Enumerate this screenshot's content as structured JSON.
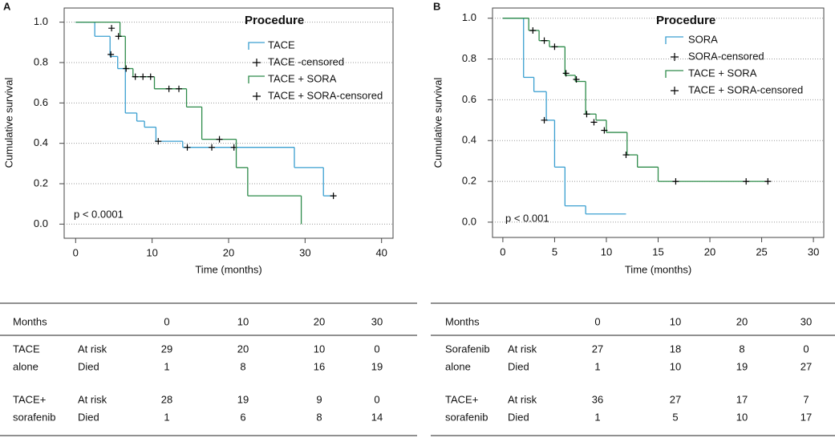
{
  "chart_data": [
    {
      "type": "step",
      "panel": "A",
      "legend_title": "Procedure",
      "annotation": "p < 0.0001",
      "xlabel": "Time (months)",
      "ylabel": "Cumulative survival",
      "xlim": [
        -1.5,
        41.5
      ],
      "xticks": [
        0,
        10,
        20,
        30,
        40
      ],
      "ylim": [
        -0.07,
        1.07
      ],
      "yticks": [
        {
          "value": 0,
          "label": "0.0"
        },
        0.2,
        0.4,
        0.6,
        0.8,
        {
          "value": 1,
          "label": "1.0"
        }
      ],
      "grid": true,
      "series": [
        {
          "name": "TACE",
          "color": "#3a9fd0",
          "style": "line",
          "x": [
            0,
            2.5,
            4.5,
            5.5,
            6.5,
            8,
            9,
            10.5,
            14,
            28.6,
            32.4,
            33.7
          ],
          "values": [
            1,
            0.93,
            0.83,
            0.77,
            0.55,
            0.51,
            0.48,
            0.41,
            0.38,
            0.28,
            0.14,
            0.14
          ]
        },
        {
          "name": "TACE -censored",
          "color": "#000000",
          "style": "marker",
          "x": [
            4.6,
            10.8,
            14.6,
            17.8,
            20.7,
            33.7
          ],
          "values": [
            0.84,
            0.41,
            0.38,
            0.38,
            0.38,
            0.14
          ]
        },
        {
          "name": "TACE + SORA",
          "color": "#2e8b4a",
          "style": "line",
          "x": [
            0,
            5.8,
            6.5,
            7.5,
            10.3,
            14.5,
            16.5,
            21,
            22.5,
            29.5
          ],
          "values": [
            1,
            0.93,
            0.77,
            0.73,
            0.67,
            0.58,
            0.42,
            0.28,
            0.14,
            0
          ]
        },
        {
          "name": "TACE + SORA-censored",
          "color": "#000000",
          "style": "marker",
          "x": [
            4.7,
            5.6,
            6.6,
            7.8,
            8.8,
            9.8,
            12.2,
            13.5,
            18.8
          ],
          "values": [
            0.97,
            0.93,
            0.77,
            0.73,
            0.73,
            0.73,
            0.67,
            0.67,
            0.42
          ]
        }
      ]
    },
    {
      "type": "step",
      "panel": "B",
      "legend_title": "Procedure",
      "annotation": "p < 0.001",
      "xlabel": "Time (months)",
      "ylabel": "Cumulative survival",
      "xlim": [
        -1,
        31
      ],
      "xticks": [
        0,
        5,
        10,
        15,
        20,
        25,
        30
      ],
      "ylim": [
        -0.075,
        1.05
      ],
      "yticks": [
        {
          "value": 0,
          "label": "0.0"
        },
        0.2,
        0.4,
        0.6,
        0.8,
        {
          "value": 1,
          "label": "1.0"
        }
      ],
      "grid": true,
      "series": [
        {
          "name": "SORA",
          "color": "#3a9fd0",
          "style": "line",
          "x": [
            0,
            2,
            3,
            4.2,
            5,
            6,
            8,
            11.9
          ],
          "values": [
            1,
            0.71,
            0.64,
            0.5,
            0.27,
            0.08,
            0.04,
            0.04
          ]
        },
        {
          "name": "SORA-censored",
          "color": "#000000",
          "style": "marker",
          "x": [
            4
          ],
          "values": [
            0.5
          ]
        },
        {
          "name": "TACE + SORA",
          "color": "#2e8b4a",
          "style": "line",
          "x": [
            0,
            2.5,
            3.5,
            4.5,
            6,
            7,
            8,
            9,
            10,
            12,
            13,
            15,
            25.6
          ],
          "values": [
            1,
            0.94,
            0.89,
            0.86,
            0.72,
            0.69,
            0.53,
            0.5,
            0.44,
            0.33,
            0.27,
            0.2,
            0.2
          ]
        },
        {
          "name": "TACE + SORA-censored",
          "color": "#000000",
          "style": "marker",
          "x": [
            2.9,
            4,
            5,
            6.1,
            7.1,
            8.1,
            8.8,
            9.8,
            11.9,
            16.7,
            23.5,
            25.6
          ],
          "values": [
            0.94,
            0.89,
            0.86,
            0.73,
            0.7,
            0.53,
            0.49,
            0.45,
            0.33,
            0.2,
            0.2,
            0.2
          ]
        }
      ]
    }
  ],
  "tables": [
    {
      "header": "Months",
      "months": [
        0,
        10,
        20,
        30
      ],
      "groups": [
        {
          "name": [
            "TACE",
            "alone"
          ],
          "rows": [
            {
              "label": "At risk",
              "values": [
                29,
                20,
                10,
                0
              ]
            },
            {
              "label": "Died",
              "values": [
                1,
                8,
                16,
                19
              ]
            }
          ]
        },
        {
          "name": [
            "TACE+",
            "sorafenib"
          ],
          "rows": [
            {
              "label": "At risk",
              "values": [
                28,
                19,
                9,
                0
              ]
            },
            {
              "label": "Died",
              "values": [
                1,
                6,
                8,
                14
              ]
            }
          ]
        }
      ]
    },
    {
      "header": "Months",
      "months": [
        0,
        10,
        20,
        30
      ],
      "groups": [
        {
          "name": [
            "Sorafenib",
            "alone"
          ],
          "rows": [
            {
              "label": "At risk",
              "values": [
                27,
                18,
                8,
                0
              ]
            },
            {
              "label": "Died",
              "values": [
                1,
                10,
                19,
                27
              ]
            }
          ]
        },
        {
          "name": [
            "TACE+",
            "sorafenib"
          ],
          "rows": [
            {
              "label": "At risk",
              "values": [
                36,
                27,
                17,
                7
              ]
            },
            {
              "label": "Died",
              "values": [
                1,
                5,
                10,
                17
              ]
            }
          ]
        }
      ]
    }
  ]
}
